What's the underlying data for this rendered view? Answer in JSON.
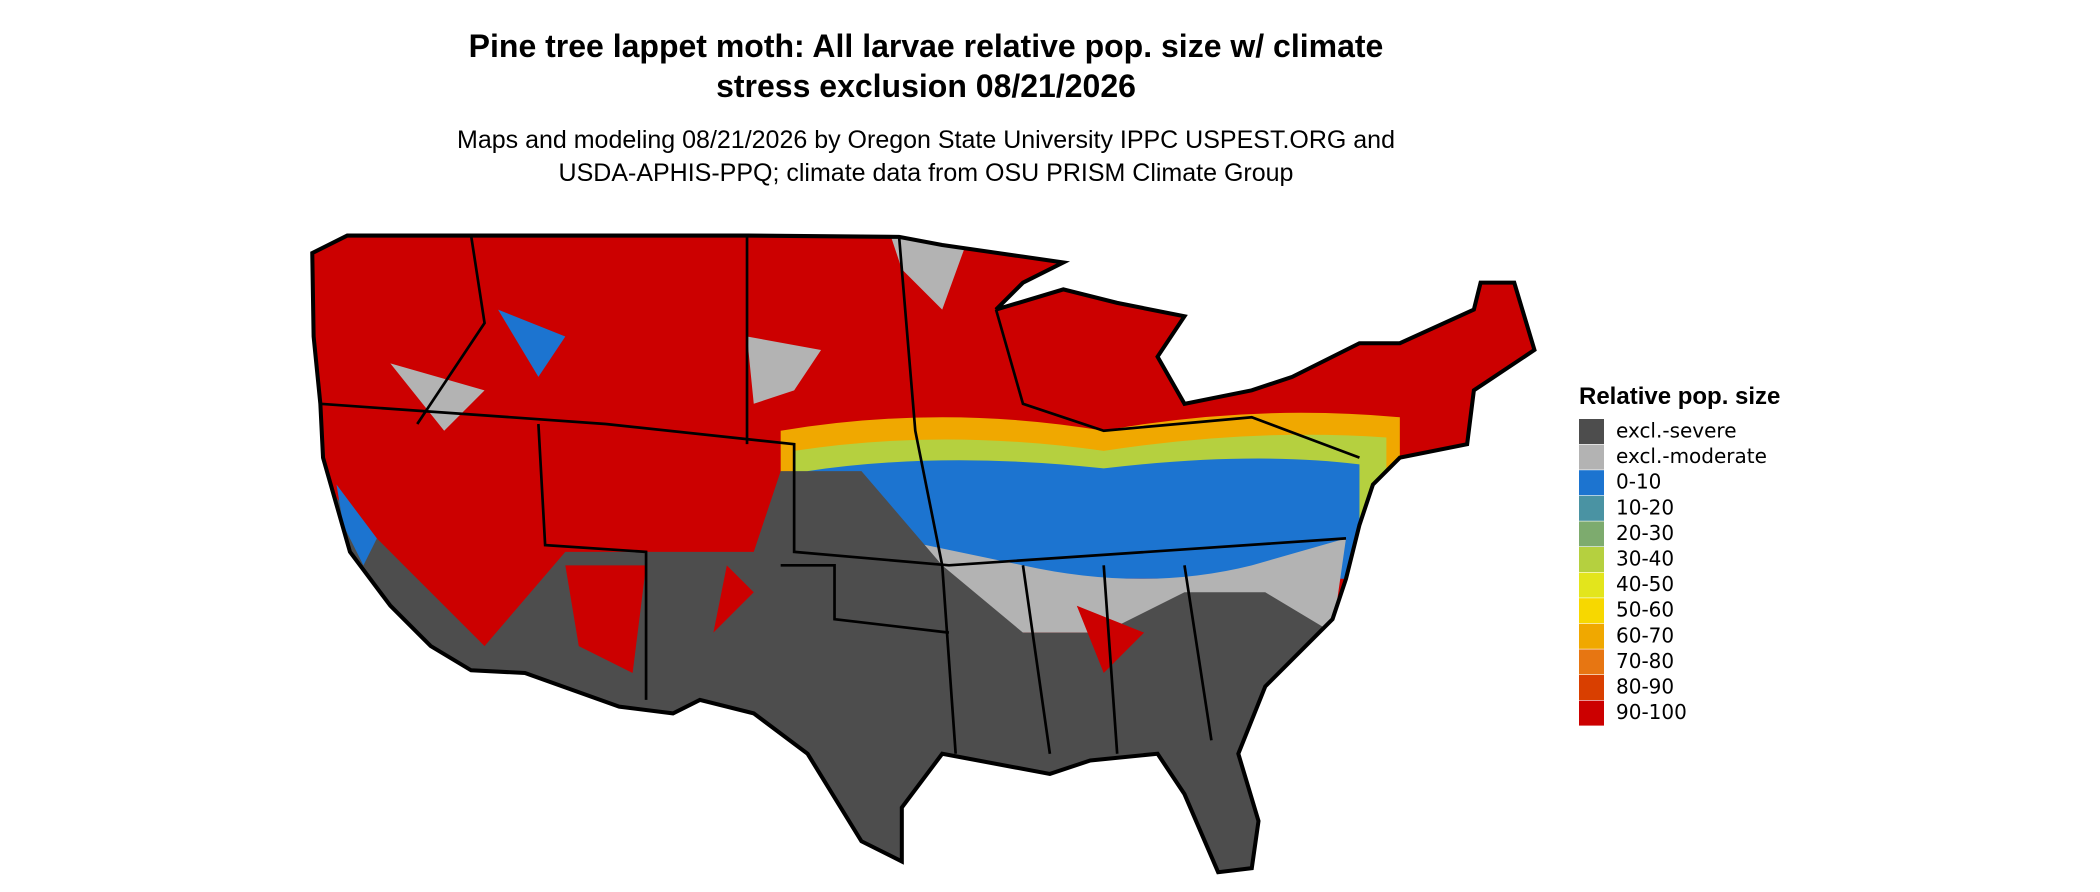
{
  "header": {
    "title_lines": [
      "Pine tree lappet moth: All larvae relative pop. size w/ climate",
      "stress exclusion 08/21/2026"
    ],
    "subtitle_lines": [
      "Maps and modeling 08/21/2026 by Oregon State University IPPC USPEST.ORG and",
      "USDA-APHIS-PPQ; climate data from OSU PRISM Climate Group"
    ]
  },
  "legend": {
    "title": "Relative pop. size",
    "items": [
      {
        "label": "excl.-severe",
        "color": "#4d4d4d"
      },
      {
        "label": "excl.-moderate",
        "color": "#b3b3b3"
      },
      {
        "label": "0-10",
        "color": "#1c74d0"
      },
      {
        "label": "10-20",
        "color": "#4a93a3"
      },
      {
        "label": "20-30",
        "color": "#7dab6e"
      },
      {
        "label": "30-40",
        "color": "#b5d03f"
      },
      {
        "label": "40-50",
        "color": "#e3e51c"
      },
      {
        "label": "50-60",
        "color": "#f7d800"
      },
      {
        "label": "60-70",
        "color": "#f0a800"
      },
      {
        "label": "70-80",
        "color": "#e77612"
      },
      {
        "label": "80-90",
        "color": "#d93f00"
      },
      {
        "label": "90-100",
        "color": "#cc0000"
      }
    ]
  }
}
